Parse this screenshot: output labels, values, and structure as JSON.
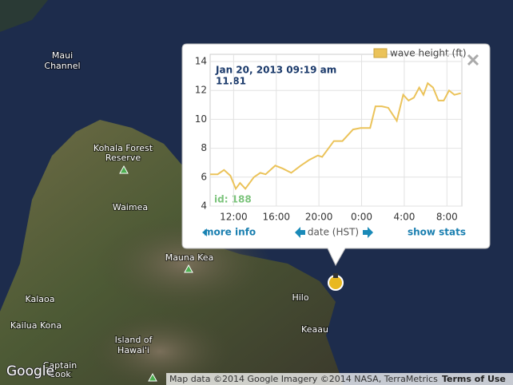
{
  "map": {
    "labels": [
      "Maui",
      "Channel",
      "Kohala Forest",
      "Reserve",
      "Waimea",
      "Mauna Kea",
      "Kalaoa",
      "Kailua Kona",
      "Island of",
      "Hawai'i",
      "Captain",
      "Cook",
      "Hilo",
      "Keaau"
    ],
    "logo": "Google",
    "attribution": "Map data ©2014 Google Imagery ©2014 NASA, TerraMetrics",
    "terms": "Terms of Use"
  },
  "popup": {
    "more_info": "more info",
    "show_stats": "show stats"
  },
  "chart_data": {
    "type": "line",
    "x": [
      9.8,
      10.5,
      11.1,
      11.7,
      12.2,
      12.6,
      13.1,
      13.9,
      14.5,
      15.0,
      15.9,
      16.6,
      17.4,
      18.3,
      19.1,
      19.9,
      20.3,
      20.8,
      21.4,
      22.2,
      23.2,
      23.9,
      24.8,
      25.3,
      25.9,
      26.5,
      27.3,
      27.9,
      28.4,
      28.9,
      29.4,
      29.8,
      30.2,
      30.7,
      31.2,
      31.7,
      32.2,
      32.7,
      33.3
    ],
    "series": [
      {
        "name": "wave height (ft)",
        "color": "#ebc35a",
        "values": [
          6.2,
          6.2,
          6.5,
          6.1,
          5.2,
          5.6,
          5.2,
          6.0,
          6.3,
          6.2,
          6.8,
          6.6,
          6.3,
          6.8,
          7.2,
          7.5,
          7.4,
          7.9,
          8.5,
          8.5,
          9.3,
          9.4,
          9.4,
          10.9,
          10.9,
          10.8,
          9.9,
          11.7,
          11.3,
          11.5,
          12.2,
          11.7,
          12.5,
          12.2,
          11.3,
          11.3,
          12.0,
          11.7,
          11.81
        ]
      }
    ],
    "xlim": [
      9.8,
      33.4
    ],
    "xticks": [
      {
        "value": 12,
        "label": "12:00"
      },
      {
        "value": 16,
        "label": "16:00"
      },
      {
        "value": 20,
        "label": "20:00"
      },
      {
        "value": 24,
        "label": "0:00"
      },
      {
        "value": 28,
        "label": "4:00"
      },
      {
        "value": 32,
        "label": "8:00"
      }
    ],
    "ylim": [
      4,
      14.5
    ],
    "yticks": [
      4,
      6,
      8,
      10,
      12,
      14
    ],
    "xlabel": "date (HST)",
    "grid": true,
    "tooltip": "Jan 20, 2013 09:19 am",
    "id_label": "id: 188"
  }
}
